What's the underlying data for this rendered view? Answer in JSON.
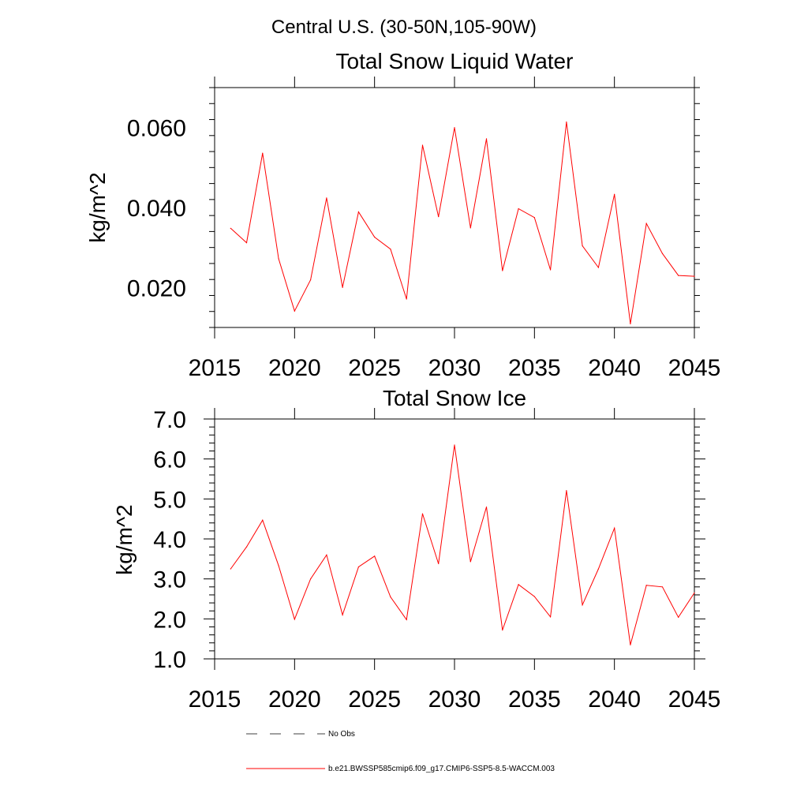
{
  "figure": {
    "title": "Central U.S. (30-50N,105-90W)"
  },
  "colors": {
    "series_line": "#ff0000",
    "obs_line": "#000000",
    "axis": "#000000"
  },
  "legend": {
    "placement": "bottom",
    "entries": [
      {
        "label": "No Obs",
        "style": "dashed",
        "color": "#000000"
      },
      {
        "label": "b.e21.BWSSP585cmip6.f09_g17.CMIP6-SSP5-8.5-WACCM.003",
        "style": "solid",
        "color": "#ff0000"
      }
    ]
  },
  "chart_data": [
    {
      "type": "line",
      "title": "Total Snow Liquid Water",
      "xlabel": "",
      "ylabel": "kg/m^2",
      "xlim": [
        2015,
        2045
      ],
      "ylim": [
        0.01,
        0.07
      ],
      "grid": false,
      "x_ticks": [
        "2015",
        "2020",
        "2025",
        "2030",
        "2035",
        "2040",
        "2045"
      ],
      "y_ticks": [
        "0.020",
        "0.040",
        "0.060"
      ],
      "x": [
        2016,
        2017,
        2018,
        2019,
        2020,
        2021,
        2022,
        2023,
        2024,
        2025,
        2026,
        2027,
        2028,
        2029,
        2030,
        2031,
        2032,
        2033,
        2034,
        2035,
        2036,
        2037,
        2038,
        2039,
        2040,
        2041,
        2042,
        2043,
        2044,
        2045
      ],
      "series": [
        {
          "name": "b.e21.BWSSP585cmip6.f09_g17.CMIP6-SSP5-8.5-WACCM.003",
          "values": [
            0.0348,
            0.0312,
            0.0536,
            0.0272,
            0.0141,
            0.0219,
            0.0424,
            0.02,
            0.0389,
            0.0326,
            0.0296,
            0.0171,
            0.0556,
            0.0377,
            0.06,
            0.0349,
            0.0572,
            0.0242,
            0.0397,
            0.0375,
            0.0244,
            0.0614,
            0.0304,
            0.025,
            0.0433,
            0.0109,
            0.036,
            0.0285,
            0.023,
            0.0228
          ]
        }
      ]
    },
    {
      "type": "line",
      "title": "Total Snow Ice",
      "xlabel": "",
      "ylabel": "kg/m^2",
      "xlim": [
        2015,
        2045
      ],
      "ylim": [
        1.0,
        7.0
      ],
      "grid": false,
      "x_ticks": [
        "2015",
        "2020",
        "2025",
        "2030",
        "2035",
        "2040",
        "2045"
      ],
      "y_ticks": [
        "1.0",
        "2.0",
        "3.0",
        "4.0",
        "5.0",
        "6.0",
        "7.0"
      ],
      "x": [
        2016,
        2017,
        2018,
        2019,
        2020,
        2021,
        2022,
        2023,
        2024,
        2025,
        2026,
        2027,
        2028,
        2029,
        2030,
        2031,
        2032,
        2033,
        2034,
        2035,
        2036,
        2037,
        2038,
        2039,
        2040,
        2041,
        2042,
        2043,
        2044,
        2045
      ],
      "series": [
        {
          "name": "b.e21.BWSSP585cmip6.f09_g17.CMIP6-SSP5-8.5-WACCM.003",
          "values": [
            3.25,
            3.8,
            4.47,
            3.33,
            1.99,
            3.0,
            3.6,
            2.1,
            3.3,
            3.57,
            2.55,
            1.98,
            4.63,
            3.38,
            6.35,
            3.43,
            4.8,
            1.72,
            2.86,
            2.56,
            2.05,
            5.21,
            2.35,
            3.25,
            4.27,
            1.35,
            2.84,
            2.8,
            2.04,
            2.65
          ]
        }
      ]
    }
  ]
}
